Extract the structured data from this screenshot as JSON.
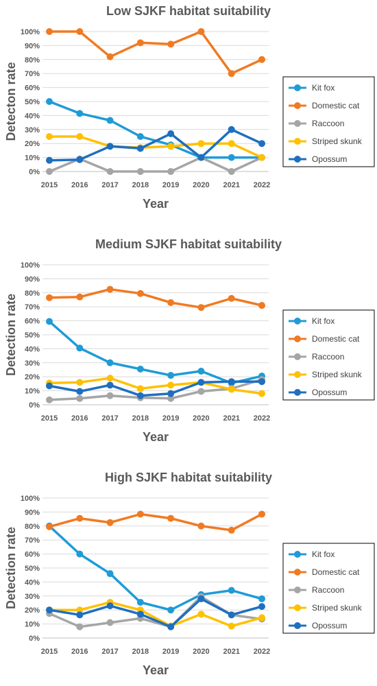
{
  "chart_data": [
    {
      "type": "line",
      "title": "Low SJKF habitat suitability",
      "xlabel": "Year",
      "ylabel": "Detecton rate",
      "ylim": [
        0,
        100
      ],
      "y_ticks": [
        "0%",
        "10%",
        "20%",
        "30%",
        "40%",
        "50%",
        "60%",
        "70%",
        "80%",
        "90%",
        "100%"
      ],
      "categories": [
        "2015",
        "2016",
        "2017",
        "2018",
        "2019",
        "2020",
        "2021",
        "2022"
      ],
      "grid": true,
      "legend_position": "right",
      "series": [
        {
          "name": "Kit fox",
          "color": "#1f9bd7",
          "values": [
            50,
            41.5,
            36.5,
            25,
            19,
            10,
            10,
            10
          ]
        },
        {
          "name": "Domestic cat",
          "color": "#f07a22",
          "values": [
            100,
            100,
            82,
            92,
            91,
            100,
            70,
            80
          ]
        },
        {
          "name": "Raccoon",
          "color": "#a5a5a5",
          "values": [
            0,
            9,
            0,
            0,
            0,
            10,
            0,
            10
          ]
        },
        {
          "name": "Striped skunk",
          "color": "#ffc000",
          "values": [
            25,
            25,
            18,
            17,
            18,
            20,
            20,
            10
          ]
        },
        {
          "name": "Opossum",
          "color": "#1f6fbf",
          "values": [
            8,
            8.5,
            18,
            16.5,
            27,
            10,
            30,
            20
          ]
        }
      ]
    },
    {
      "type": "line",
      "title": "Medium SJKF habitat suitability",
      "xlabel": "Year",
      "ylabel": "Detection rate",
      "ylim": [
        0,
        100
      ],
      "y_ticks": [
        "0%",
        "10%",
        "20%",
        "30%",
        "40%",
        "50%",
        "60%",
        "70%",
        "80%",
        "90%",
        "100%"
      ],
      "categories": [
        "2015",
        "2016",
        "2017",
        "2018",
        "2019",
        "2020",
        "2021",
        "2022"
      ],
      "grid": true,
      "legend_position": "right",
      "series": [
        {
          "name": "Kit fox",
          "color": "#1f9bd7",
          "values": [
            59.5,
            40.5,
            30,
            25.5,
            21,
            24,
            15.5,
            20.5
          ]
        },
        {
          "name": "Domestic cat",
          "color": "#f07a22",
          "values": [
            76.5,
            77,
            82.5,
            79.5,
            73,
            69.5,
            76,
            71
          ]
        },
        {
          "name": "Raccoon",
          "color": "#a5a5a5",
          "values": [
            3.5,
            4.5,
            6.5,
            5,
            4.5,
            9.5,
            11.5,
            18
          ]
        },
        {
          "name": "Striped skunk",
          "color": "#ffc000",
          "values": [
            15.5,
            16,
            19,
            11.5,
            14,
            16,
            11,
            8
          ]
        },
        {
          "name": "Opossum",
          "color": "#1f6fbf",
          "values": [
            13.5,
            9.5,
            14,
            6.5,
            8,
            16,
            16.5,
            16.5
          ]
        }
      ]
    },
    {
      "type": "line",
      "title": "High SJKF habitat suitability",
      "xlabel": "Year",
      "ylabel": "Detection rate",
      "ylim": [
        0,
        100
      ],
      "y_ticks": [
        "0%",
        "10%",
        "20%",
        "30%",
        "40%",
        "50%",
        "60%",
        "70%",
        "80%",
        "90%",
        "100%"
      ],
      "categories": [
        "2015",
        "2016",
        "2017",
        "2018",
        "2019",
        "2020",
        "2021",
        "2022"
      ],
      "grid": true,
      "legend_position": "right",
      "series": [
        {
          "name": "Kit fox",
          "color": "#1f9bd7",
          "values": [
            80,
            60,
            46,
            25.5,
            20,
            31,
            34,
            28
          ]
        },
        {
          "name": "Domestic cat",
          "color": "#f07a22",
          "values": [
            79.5,
            85.5,
            82.5,
            88.5,
            85.5,
            80,
            77,
            88.5
          ]
        },
        {
          "name": "Raccoon",
          "color": "#a5a5a5",
          "values": [
            17.5,
            8,
            11,
            14,
            8,
            29.5,
            16.5,
            13.5
          ]
        },
        {
          "name": "Striped skunk",
          "color": "#ffc000",
          "values": [
            20,
            20,
            25.5,
            20,
            8.5,
            17,
            8.5,
            14.5
          ]
        },
        {
          "name": "Opossum",
          "color": "#1f6fbf",
          "values": [
            20,
            16.5,
            23,
            17,
            8,
            28,
            16.5,
            22.5
          ]
        }
      ]
    }
  ]
}
